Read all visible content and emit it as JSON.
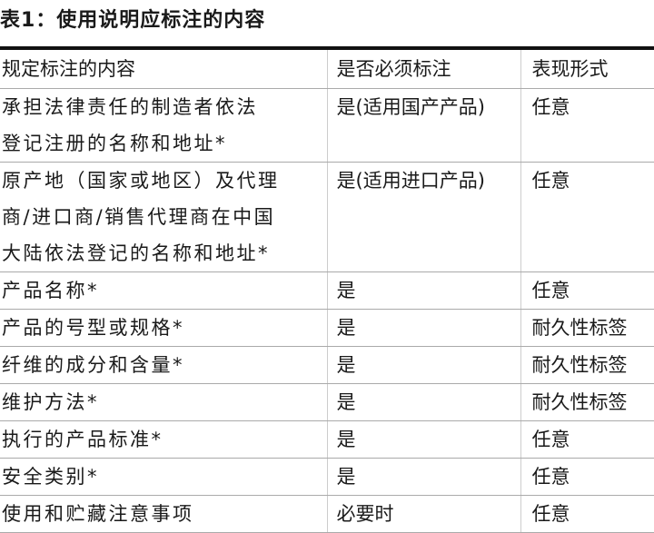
{
  "title": "表1：使用说明应标注的内容",
  "table": {
    "headers": [
      "规定标注的内容",
      "是否必须标注",
      "表现形式"
    ],
    "rows": [
      [
        "承担法律责任的制造者依法\n登记注册的名称和地址*",
        "是(适用国产产品)",
        "任意"
      ],
      [
        "原产地（国家或地区）及代理\n商/进口商/销售代理商在中国\n大陆依法登记的名称和地址*",
        "是(适用进口产品)",
        "任意"
      ],
      [
        "产品名称*",
        "是",
        "任意"
      ],
      [
        "产品的号型或规格*",
        "是",
        "耐久性标签"
      ],
      [
        "纤维的成分和含量*",
        "是",
        "耐久性标签"
      ],
      [
        "维护方法*",
        "是",
        "耐久性标签"
      ],
      [
        "执行的产品标准*",
        "是",
        "任意"
      ],
      [
        "安全类别*",
        "是",
        "任意"
      ],
      [
        "使用和贮藏注意事项",
        "必要时",
        "任意"
      ]
    ]
  }
}
